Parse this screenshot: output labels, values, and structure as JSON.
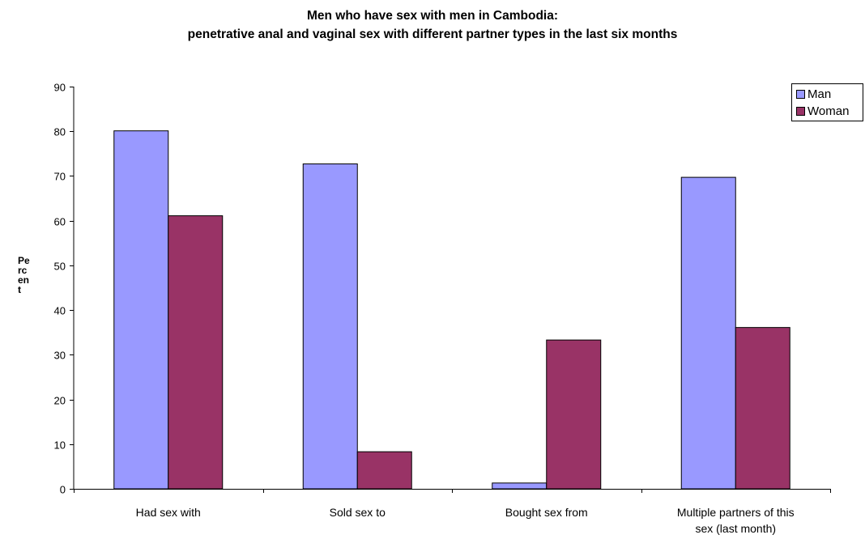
{
  "chart_data": {
    "type": "bar",
    "title": [
      "Men who have sex with men in Cambodia:",
      "penetrative anal and vaginal sex with different partner types in the last six months"
    ],
    "ylabel": "Pe\nrc\nen\nt",
    "xlabel": "",
    "ylim": [
      0,
      90
    ],
    "yticks": [
      0,
      10,
      20,
      30,
      40,
      50,
      60,
      70,
      80,
      90
    ],
    "categories": [
      [
        "Had sex with"
      ],
      [
        "Sold sex to"
      ],
      [
        "Bought sex from"
      ],
      [
        "Multiple partners of this",
        "sex (last month)"
      ]
    ],
    "series": [
      {
        "name": "Man",
        "color": "#9999ff",
        "values": [
          80.1,
          72.7,
          1.3,
          69.7
        ]
      },
      {
        "name": "Woman",
        "color": "#993366",
        "values": [
          61.1,
          8.3,
          33.3,
          36.1
        ]
      }
    ],
    "grid": false,
    "legend": "top-right"
  }
}
